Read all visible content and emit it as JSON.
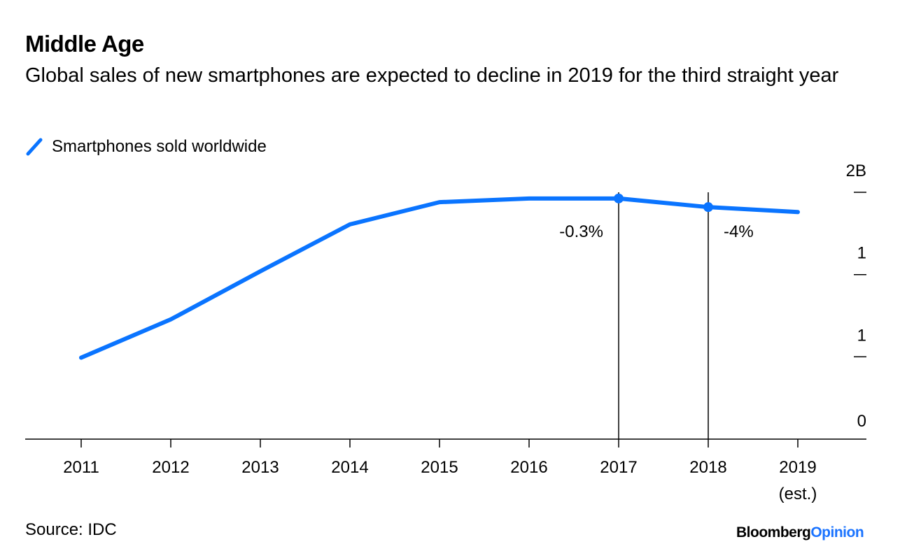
{
  "chart_data": {
    "type": "line",
    "title": "Middle Age",
    "subtitle": "Global sales of new smartphones are expected to decline in 2019 for the third straight year",
    "xlabel": "",
    "ylabel": "",
    "x": [
      "2011",
      "2012",
      "2013",
      "2014",
      "2015",
      "2016",
      "2017",
      "2018",
      "2019"
    ],
    "x_tick_labels": [
      "2011",
      "2012",
      "2013",
      "2014",
      "2015",
      "2016",
      "2017",
      "2018",
      "2019\n(est.)"
    ],
    "series": [
      {
        "name": "Smartphones sold worldwide",
        "color": "#0a74ff",
        "values": [
          0.66,
          0.97,
          1.36,
          1.74,
          1.92,
          1.95,
          1.95,
          1.88,
          1.84
        ]
      }
    ],
    "ylim": [
      0,
      2
    ],
    "y_ticks": [
      0,
      0.667,
      1.333,
      2
    ],
    "y_tick_labels": [
      "0",
      "1",
      "1",
      "2B"
    ],
    "y_axis_side": "right",
    "annotations": [
      {
        "x": "2017",
        "text": "-0.3%",
        "side": "left"
      },
      {
        "x": "2018",
        "text": "-4%",
        "side": "right"
      }
    ],
    "legend_position": "top-left",
    "grid": false
  },
  "header": {
    "title": "Middle Age",
    "subtitle": "Global sales of new smartphones are expected to decline in 2019 for the third straight year"
  },
  "legend": {
    "label": "Smartphones sold worldwide",
    "icon": "diagonal-line-swatch"
  },
  "footer": {
    "source": "Source: IDC",
    "brand_main": "Bloomberg",
    "brand_accent": "Opinion"
  },
  "colors": {
    "line": "#0a74ff",
    "axis": "#000000",
    "brand_accent": "#1a73ff"
  }
}
